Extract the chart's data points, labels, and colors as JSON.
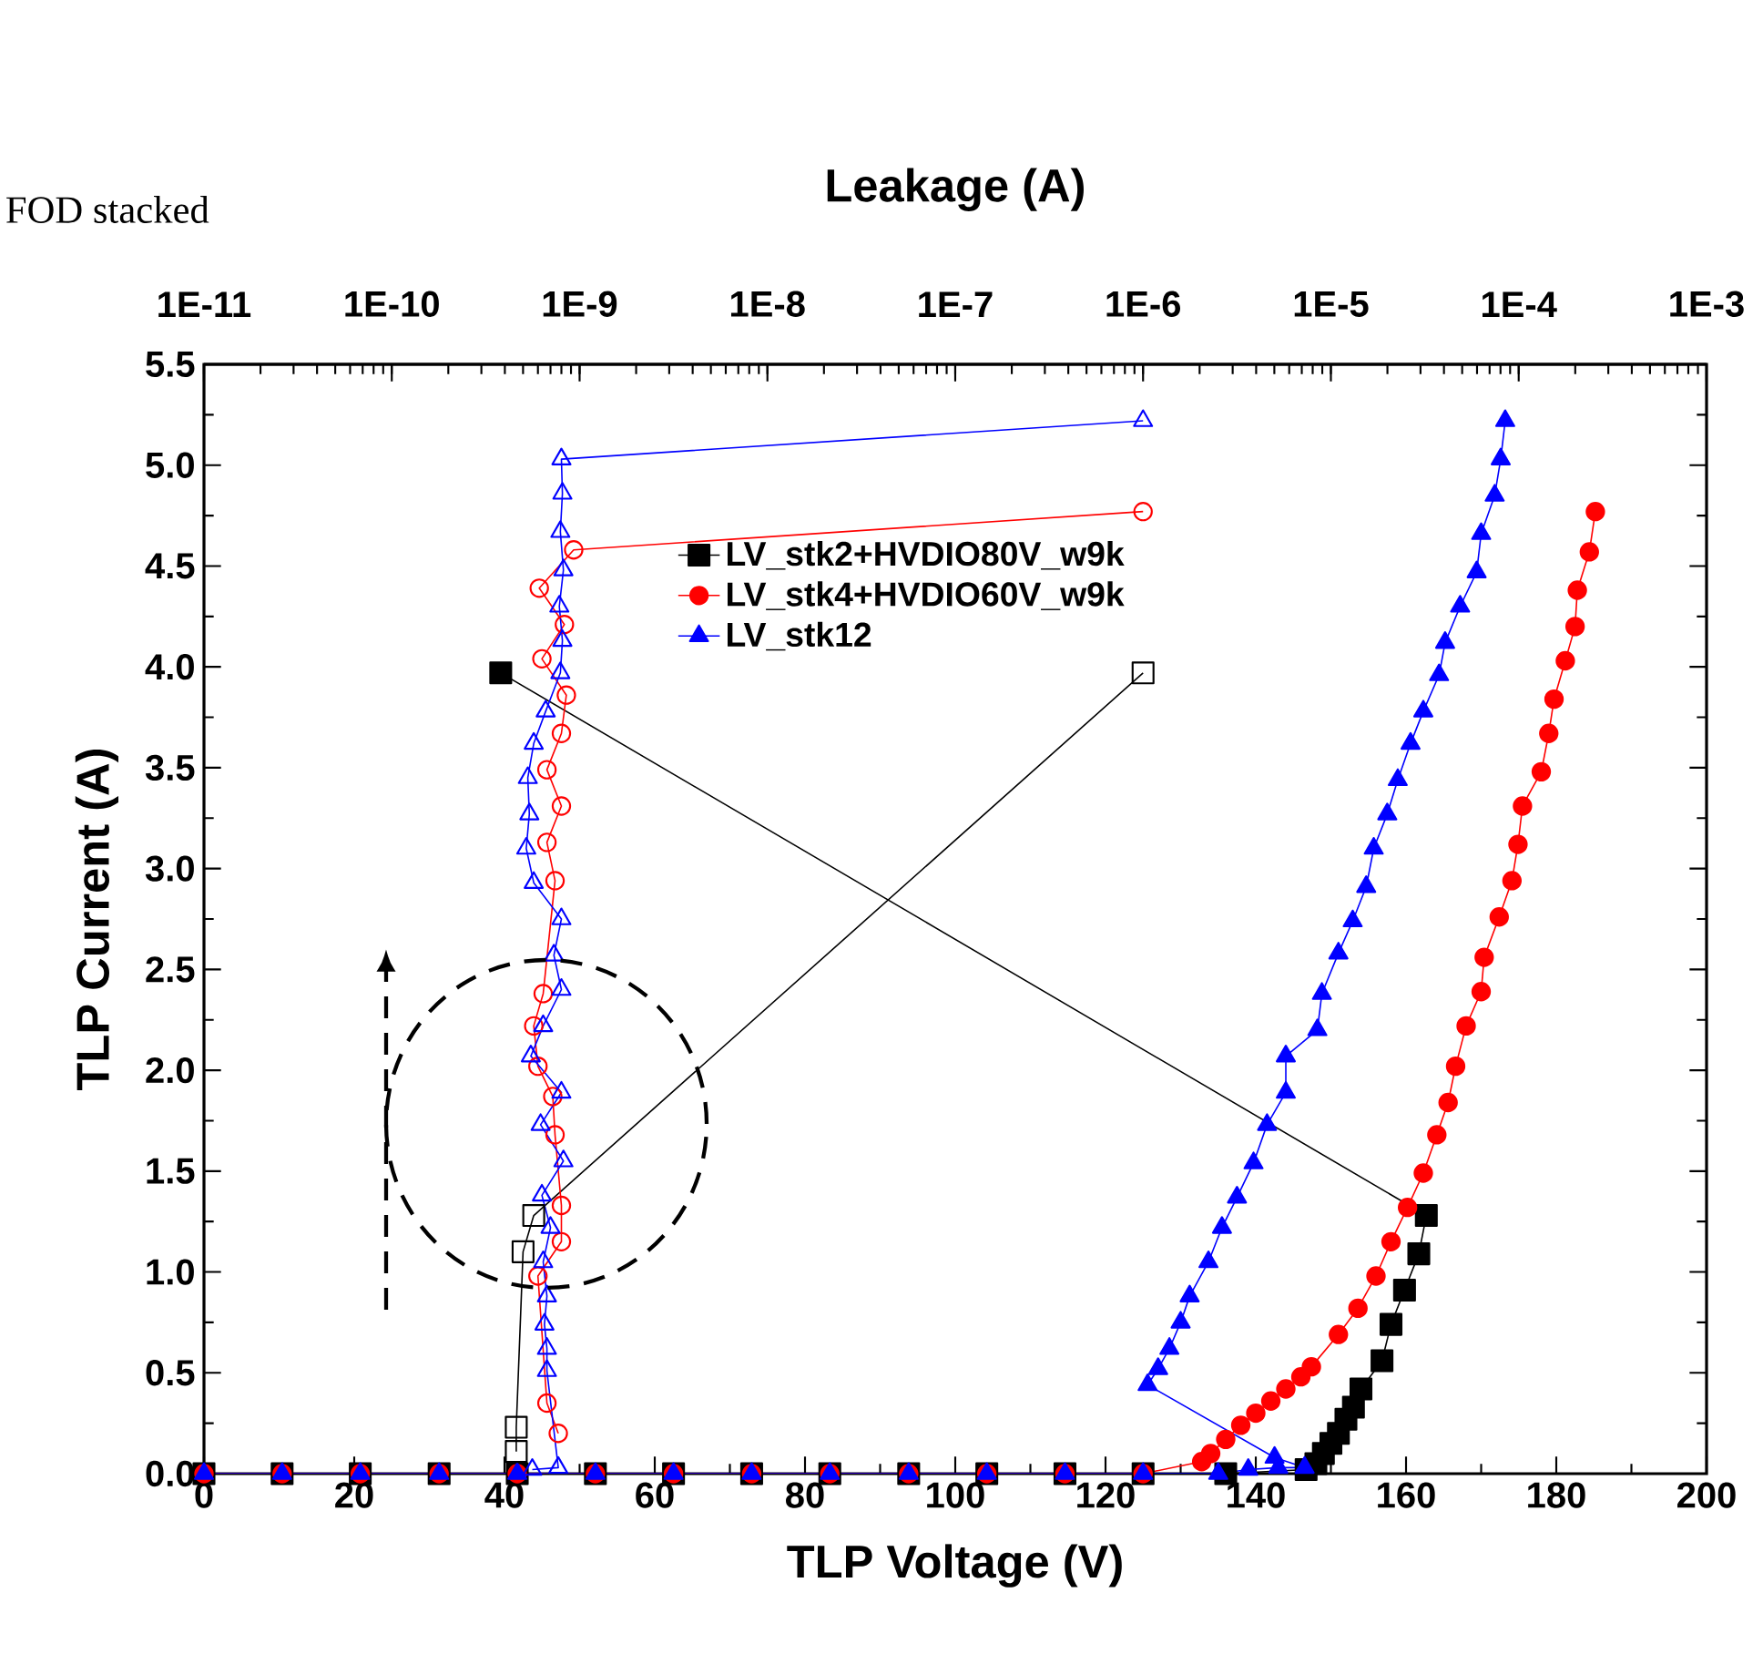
{
  "chart_data": {
    "type": "line",
    "xlabel": "TLP Voltage (V)",
    "ylabel": "TLP Current (A)",
    "x2label": "Leakage (A)",
    "annotations": [
      "FOD stacked"
    ],
    "xlim": [
      0,
      200
    ],
    "xticks": [
      0,
      20,
      40,
      60,
      80,
      100,
      120,
      140,
      160,
      180,
      200
    ],
    "x2lim": [
      1e-11,
      0.001
    ],
    "log": "x2",
    "x2ticks": [
      {
        "value": 1e-11,
        "label": "1E-11"
      },
      {
        "value": 1e-10,
        "label": "1E-10"
      },
      {
        "value": 1e-09,
        "label": "1E-9"
      },
      {
        "value": 1e-08,
        "label": "1E-8"
      },
      {
        "value": 1e-07,
        "label": "1E-7"
      },
      {
        "value": 1e-06,
        "label": "1E-6"
      },
      {
        "value": 1e-05,
        "label": "1E-5"
      },
      {
        "value": 0.0001,
        "label": "1E-4"
      },
      {
        "value": 0.001,
        "label": "1E-3"
      }
    ],
    "ylim": [
      0,
      5.5
    ],
    "yticks": [
      {
        "value": 0,
        "label": "0.0"
      },
      {
        "value": 0.5,
        "label": "0.5"
      },
      {
        "value": 1,
        "label": "1.0"
      },
      {
        "value": 1.5,
        "label": "1.5"
      },
      {
        "value": 2,
        "label": "2.0"
      },
      {
        "value": 2.5,
        "label": "2.5"
      },
      {
        "value": 3,
        "label": "3.0"
      },
      {
        "value": 3.5,
        "label": "3.5"
      },
      {
        "value": 4,
        "label": "4.0"
      },
      {
        "value": 4.5,
        "label": "4.5"
      },
      {
        "value": 5,
        "label": "5.0"
      },
      {
        "value": 5.5,
        "label": "5.5"
      }
    ],
    "legend": "top",
    "series": [
      {
        "name": "LV_stk2+HVDIO80V_w9k",
        "color": "#000000",
        "marker": "square",
        "x": [
          0,
          10.4,
          20.8,
          31.3,
          41.7,
          52.1,
          62.5,
          72.9,
          83.3,
          93.8,
          104.2,
          114.6,
          125,
          136,
          146.7,
          148,
          149,
          150,
          151,
          152,
          153,
          154,
          156.8,
          158,
          159.8,
          161.7,
          162.7,
          39.5
        ],
        "values": [
          0,
          0,
          0,
          0,
          0,
          0,
          0,
          0,
          0,
          0,
          0,
          0,
          0,
          0,
          0.02,
          0.05,
          0.1,
          0.15,
          0.2,
          0.27,
          0.33,
          0.42,
          0.56,
          0.74,
          0.91,
          1.09,
          1.28,
          3.97
        ]
      },
      {
        "name": "LV_stk4+HVDIO60V_w9k",
        "color": "#ff0000",
        "marker": "circle",
        "x": [
          0,
          10.4,
          20.8,
          31.3,
          41.7,
          52.1,
          62.5,
          72.9,
          83.3,
          93.8,
          104.2,
          114.6,
          125,
          132.8,
          134,
          136,
          138,
          140,
          142,
          144,
          146,
          147.4,
          151,
          153.6,
          156,
          158,
          160.2,
          162.3,
          164.1,
          165.6,
          166.6,
          168,
          170,
          170.4,
          172.4,
          174.1,
          174.9,
          175.5,
          178,
          179,
          179.7,
          181.2,
          182.5,
          182.8,
          184.4,
          185.2
        ],
        "values": [
          0,
          0,
          0,
          0,
          0,
          0,
          0,
          0,
          0,
          0,
          0,
          0,
          0,
          0.06,
          0.1,
          0.17,
          0.24,
          0.3,
          0.36,
          0.42,
          0.48,
          0.53,
          0.69,
          0.82,
          0.98,
          1.15,
          1.32,
          1.49,
          1.68,
          1.84,
          2.02,
          2.22,
          2.39,
          2.56,
          2.76,
          2.94,
          3.12,
          3.31,
          3.48,
          3.67,
          3.84,
          4.03,
          4.2,
          4.38,
          4.57,
          4.77
        ]
      },
      {
        "name": "LV_stk12",
        "color": "#0000ff",
        "marker": "triangle",
        "x": [
          0,
          10.4,
          20.8,
          31.3,
          41.7,
          52.1,
          62.5,
          72.9,
          83.3,
          93.8,
          104.2,
          114.6,
          125,
          135,
          139,
          143,
          146.5,
          142.5,
          125.6,
          127,
          128.5,
          130,
          131.2,
          133.7,
          135.5,
          137.5,
          139.7,
          141.5,
          144,
          144,
          148.2,
          148.8,
          151,
          152.9,
          154.7,
          155.7,
          157.5,
          158.9,
          160.6,
          162.3,
          164.4,
          165.2,
          167.2,
          169.4,
          170,
          171.8,
          172.6,
          173.2
        ],
        "values": [
          0,
          0,
          0,
          0,
          0,
          0,
          0,
          0,
          0,
          0,
          0,
          0,
          0,
          0,
          0.02,
          0.03,
          0.03,
          0.08,
          0.44,
          0.52,
          0.62,
          0.75,
          0.88,
          1.05,
          1.22,
          1.37,
          1.54,
          1.73,
          1.89,
          2.07,
          2.2,
          2.38,
          2.58,
          2.74,
          2.91,
          3.1,
          3.27,
          3.44,
          3.62,
          3.78,
          3.96,
          4.12,
          4.3,
          4.47,
          4.66,
          4.85,
          5.03,
          5.22
        ]
      },
      {
        "color": "#000000",
        "marker": "square",
        "axis": "x2",
        "x": [
          4.6e-10,
          4.6e-10,
          5e-10,
          5.7e-10,
          1e-06
        ],
        "values": [
          0.11,
          0.23,
          1.1,
          1.28,
          3.97
        ]
      },
      {
        "color": "#ff0000",
        "marker": "circle",
        "axis": "x2",
        "x": [
          7.7e-10,
          6.7e-10,
          6e-10,
          8e-10,
          8e-10,
          7.4e-10,
          7.2e-10,
          6e-10,
          5.7e-10,
          6.4e-10,
          7.4e-10,
          6.7e-10,
          8e-10,
          6.7e-10,
          8e-10,
          8.5e-10,
          6.3e-10,
          8.3e-10,
          6.1e-10,
          9.3e-10,
          1e-06
        ],
        "values": [
          0.2,
          0.35,
          0.98,
          1.15,
          1.33,
          1.68,
          1.87,
          2.02,
          2.22,
          2.38,
          2.94,
          3.13,
          3.31,
          3.49,
          3.67,
          3.86,
          4.04,
          4.21,
          4.39,
          4.58,
          4.77
        ]
      },
      {
        "color": "#0000ff",
        "marker": "triangle",
        "axis": "x2",
        "x": [
          5.6e-10,
          7.7e-10,
          6.7e-10,
          6.7e-10,
          6.5e-10,
          6.7e-10,
          6.4e-10,
          7e-10,
          6.3e-10,
          8.2e-10,
          6.2e-10,
          8e-10,
          5.5e-10,
          6.4e-10,
          8e-10,
          7.3e-10,
          8e-10,
          5.7e-10,
          5.2e-10,
          5.4e-10,
          5.3e-10,
          5.7e-10,
          6.6e-10,
          7.9e-10,
          8.1e-10,
          7.8e-10,
          8.2e-10,
          7.9e-10,
          8.1e-10,
          8e-10,
          1e-06
        ],
        "values": [
          0.02,
          0.03,
          0.51,
          0.62,
          0.74,
          0.88,
          1.05,
          1.22,
          1.38,
          1.55,
          1.73,
          1.89,
          2.07,
          2.22,
          2.4,
          2.57,
          2.75,
          2.93,
          3.1,
          3.27,
          3.45,
          3.62,
          3.78,
          3.97,
          4.13,
          4.3,
          4.48,
          4.67,
          4.86,
          5.03,
          5.22
        ]
      }
    ]
  }
}
